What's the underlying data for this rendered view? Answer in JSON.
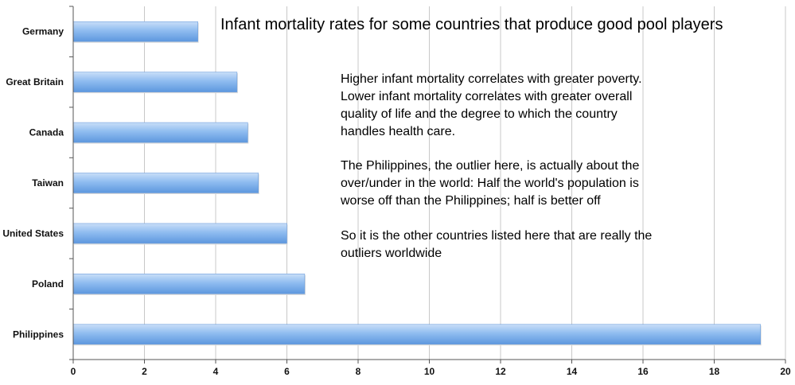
{
  "chart_data": {
    "type": "bar",
    "orientation": "horizontal",
    "title": "Infant mortality rates for some countries that produce good pool players",
    "categories": [
      "Germany",
      "Great Britain",
      "Canada",
      "Taiwan",
      "United States",
      "Poland",
      "Philippines"
    ],
    "values": [
      3.5,
      4.6,
      4.9,
      5.2,
      6.0,
      6.5,
      19.3
    ],
    "xlim": [
      0,
      20
    ],
    "x_ticks": [
      "0",
      "2",
      "4",
      "6",
      "8",
      "10",
      "12",
      "14",
      "16",
      "18",
      "20"
    ],
    "grid": "vertical",
    "bar_color": "#7fb2ec",
    "xlabel": "",
    "ylabel": ""
  },
  "annotation": {
    "para1_lines": [
      "Higher infant mortality correlates with greater poverty.",
      "Lower infant mortality correlates with greater overall",
      "quality of life and the degree to which the country",
      "handles health care."
    ],
    "para2_lines": [
      "The Philippines, the outlier here, is actually about the",
      "over/under in the world: Half the world's population is",
      "worse off than the Philippines; half is better off"
    ],
    "para3_lines": [
      "So it is the other countries listed here that are really the",
      "outliers worldwide"
    ]
  }
}
